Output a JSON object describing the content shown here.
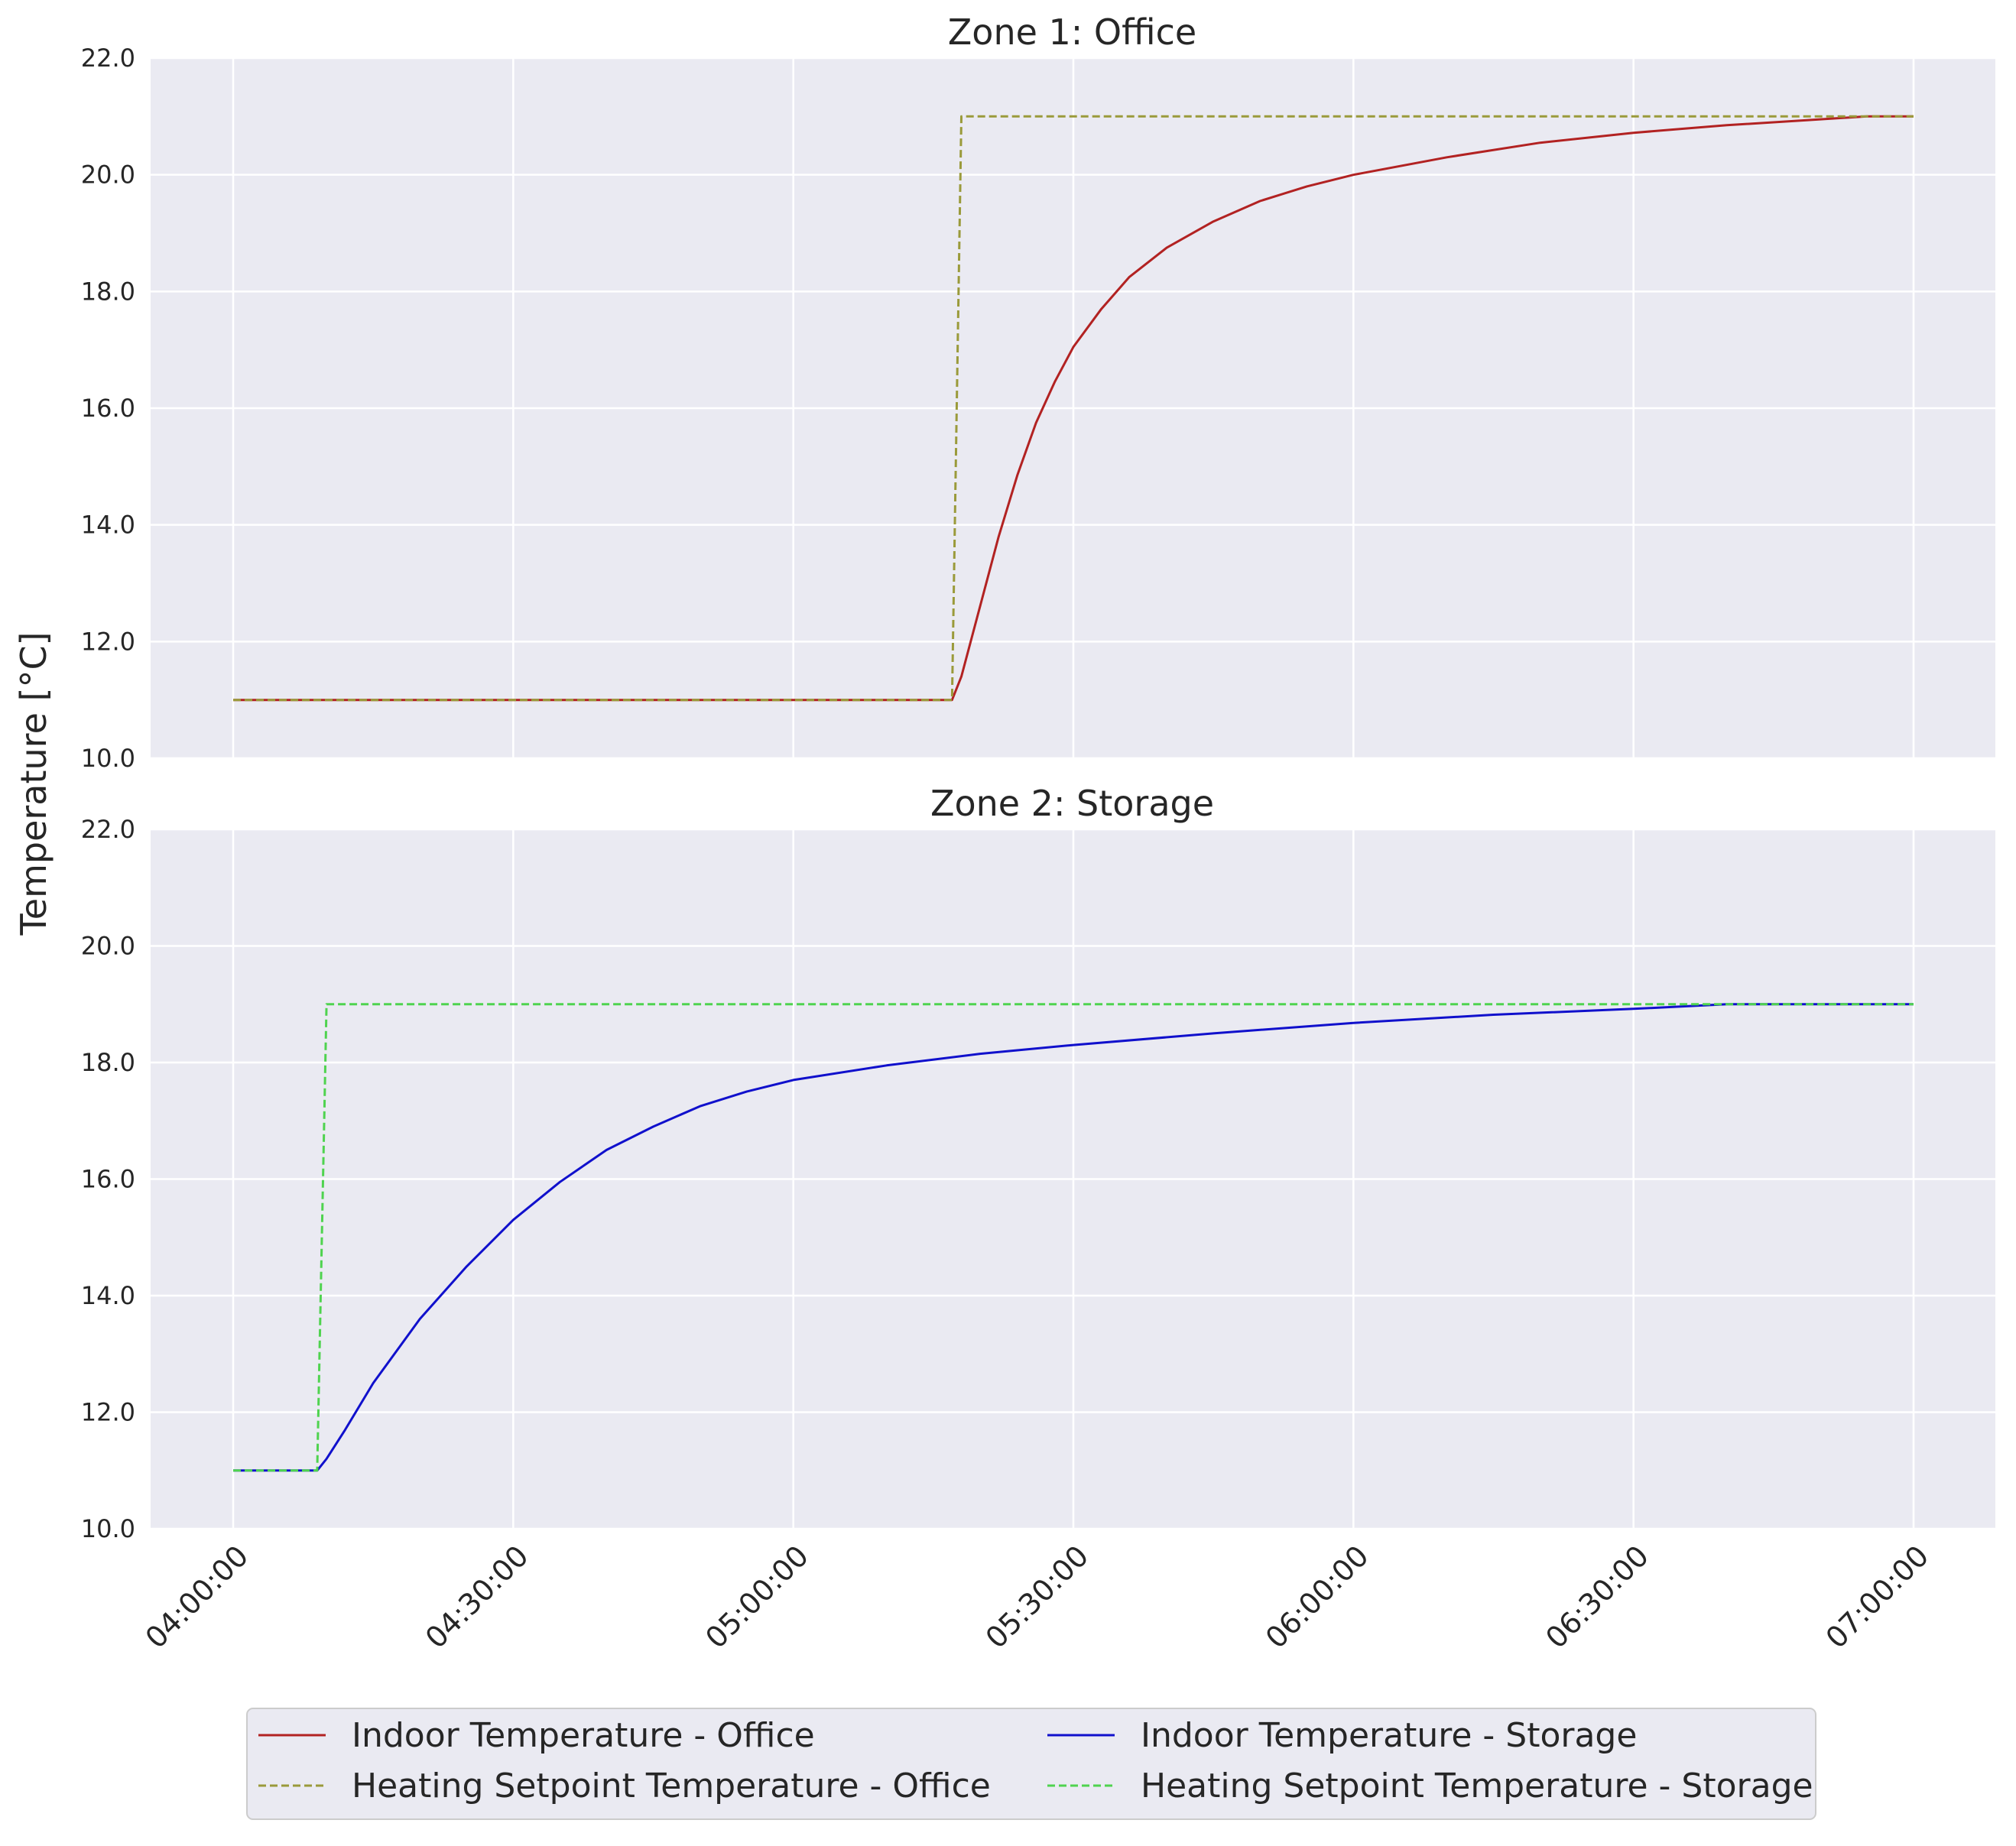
{
  "chart_data": {
    "type": "line",
    "ylabel": "Temperature [°C]",
    "x_ticks": [
      "04:00:00",
      "04:30:00",
      "05:00:00",
      "05:30:00",
      "06:00:00",
      "06:30:00",
      "07:00:00"
    ],
    "xlim": [
      "04:00:00",
      "07:00:00"
    ],
    "grid": true,
    "legend_position": "bottom-center",
    "panels": [
      {
        "title": "Zone 1: Office",
        "ylim": [
          10.0,
          22.0
        ],
        "y_ticks": [
          "10.0",
          "12.0",
          "14.0",
          "16.0",
          "18.0",
          "20.0",
          "22.0"
        ],
        "series": [
          {
            "name": "Indoor Temperature - Office",
            "color": "#b22222",
            "style": "solid",
            "points": [
              [
                "04:00:00",
                11.0
              ],
              [
                "05:17:00",
                11.0
              ],
              [
                "05:18:00",
                11.4
              ],
              [
                "05:20:00",
                12.6
              ],
              [
                "05:22:00",
                13.8
              ],
              [
                "05:24:00",
                14.85
              ],
              [
                "05:26:00",
                15.75
              ],
              [
                "05:28:00",
                16.45
              ],
              [
                "05:30:00",
                17.05
              ],
              [
                "05:33:00",
                17.7
              ],
              [
                "05:36:00",
                18.25
              ],
              [
                "05:40:00",
                18.75
              ],
              [
                "05:45:00",
                19.2
              ],
              [
                "05:50:00",
                19.55
              ],
              [
                "05:55:00",
                19.8
              ],
              [
                "06:00:00",
                20.0
              ],
              [
                "06:10:00",
                20.3
              ],
              [
                "06:20:00",
                20.55
              ],
              [
                "06:30:00",
                20.72
              ],
              [
                "06:40:00",
                20.85
              ],
              [
                "06:50:00",
                20.95
              ],
              [
                "06:55:00",
                21.0
              ],
              [
                "07:00:00",
                21.0
              ]
            ]
          },
          {
            "name": "Heating Setpoint Temperature - Office",
            "color": "#9a9a3a",
            "style": "dashed",
            "points": [
              [
                "04:00:00",
                11.0
              ],
              [
                "05:17:00",
                11.0
              ],
              [
                "05:18:00",
                21.0
              ],
              [
                "07:00:00",
                21.0
              ]
            ]
          }
        ]
      },
      {
        "title": "Zone 2: Storage",
        "ylim": [
          10.0,
          22.0
        ],
        "y_ticks": [
          "10.0",
          "12.0",
          "14.0",
          "16.0",
          "18.0",
          "20.0",
          "22.0"
        ],
        "series": [
          {
            "name": "Indoor Temperature - Storage",
            "color": "#1010cc",
            "style": "solid",
            "points": [
              [
                "04:00:00",
                11.0
              ],
              [
                "04:09:00",
                11.0
              ],
              [
                "04:10:00",
                11.2
              ],
              [
                "04:12:00",
                11.7
              ],
              [
                "04:15:00",
                12.5
              ],
              [
                "04:20:00",
                13.6
              ],
              [
                "04:25:00",
                14.5
              ],
              [
                "04:30:00",
                15.3
              ],
              [
                "04:35:00",
                15.95
              ],
              [
                "04:40:00",
                16.5
              ],
              [
                "04:45:00",
                16.9
              ],
              [
                "04:50:00",
                17.25
              ],
              [
                "04:55:00",
                17.5
              ],
              [
                "05:00:00",
                17.7
              ],
              [
                "05:10:00",
                17.95
              ],
              [
                "05:20:00",
                18.15
              ],
              [
                "05:30:00",
                18.3
              ],
              [
                "05:45:00",
                18.5
              ],
              [
                "06:00:00",
                18.68
              ],
              [
                "06:15:00",
                18.82
              ],
              [
                "06:30:00",
                18.92
              ],
              [
                "06:40:00",
                19.0
              ],
              [
                "07:00:00",
                19.0
              ]
            ]
          },
          {
            "name": "Heating Setpoint Temperature - Storage",
            "color": "#4fd34f",
            "style": "dashed",
            "points": [
              [
                "04:00:00",
                11.0
              ],
              [
                "04:09:00",
                11.0
              ],
              [
                "04:10:00",
                19.0
              ],
              [
                "07:00:00",
                19.0
              ]
            ]
          }
        ]
      }
    ],
    "legend": [
      "Indoor Temperature - Office",
      "Heating Setpoint Temperature - Office",
      "Indoor Temperature - Storage",
      "Heating Setpoint Temperature - Storage"
    ]
  }
}
